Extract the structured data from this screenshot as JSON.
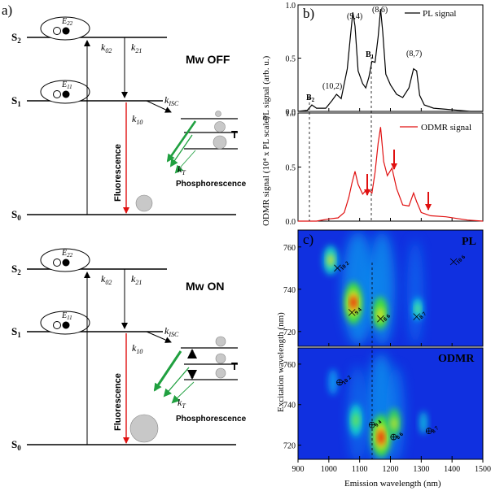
{
  "figure": {
    "panel_labels": {
      "a": "a)",
      "b": "b)",
      "c": "c)"
    },
    "diagram": {
      "top_condition": "Mw OFF",
      "bottom_condition": "Mw ON",
      "levels": {
        "S2": "S",
        "S2_sub": "2",
        "S1": "S",
        "S1_sub": "1",
        "S0": "S",
        "S0_sub": "0",
        "T": "T"
      },
      "exciton_labels": {
        "E22": "E",
        "E22_sub": "22",
        "E11": "E",
        "E11_sub": "11"
      },
      "rates": {
        "k": "k",
        "k02": "02",
        "k21": "21",
        "kISC": "ISC",
        "k10": "10",
        "kT": "T"
      },
      "fluorescence": "Fluorescence",
      "phosphorescence": "Phosphorescence"
    },
    "colors": {
      "fluorescence_arrow": "#e01010",
      "phosphorescence_arrow": "#20a040",
      "odmr_line": "#e01010",
      "map_background": "#1030e0",
      "map_hot": "#e00000"
    }
  },
  "chart_data": [
    {
      "type": "line",
      "panel": "b (top)",
      "legend": "PL signal",
      "ylabel": "PL signal (arb. u.)",
      "xlim": [
        900,
        1500
      ],
      "ylim": [
        0,
        1.0
      ],
      "yticks": [
        "0.0",
        "0.5",
        "1.0"
      ],
      "x": [
        900,
        930,
        945,
        960,
        990,
        1010,
        1025,
        1040,
        1060,
        1070,
        1078,
        1085,
        1095,
        1110,
        1120,
        1130,
        1140,
        1150,
        1160,
        1168,
        1175,
        1185,
        1200,
        1220,
        1240,
        1260,
        1275,
        1285,
        1295,
        1310,
        1340,
        1380,
        1420,
        1460,
        1500
      ],
      "y": [
        0.0,
        0.01,
        0.06,
        0.03,
        0.03,
        0.1,
        0.16,
        0.12,
        0.4,
        0.7,
        0.93,
        0.8,
        0.38,
        0.26,
        0.22,
        0.32,
        0.47,
        0.46,
        0.7,
        0.96,
        0.75,
        0.35,
        0.25,
        0.16,
        0.13,
        0.22,
        0.4,
        0.38,
        0.15,
        0.06,
        0.03,
        0.02,
        0.01,
        0.0,
        0.0
      ],
      "annotations": [
        "B",
        "2",
        "(10,2)",
        "(9,4)",
        "B",
        "1",
        "(8,6)",
        "(8,7)"
      ]
    },
    {
      "type": "line",
      "panel": "b (bottom)",
      "legend": "ODMR signal",
      "ylabel": "ODMR signal (10⁴ x PL scale)",
      "xlim": [
        900,
        1500
      ],
      "ylim": [
        0,
        1.0
      ],
      "yticks": [
        "0.0",
        "0.5",
        "1.0"
      ],
      "x": [
        900,
        960,
        1000,
        1030,
        1050,
        1065,
        1075,
        1085,
        1095,
        1110,
        1125,
        1140,
        1150,
        1160,
        1168,
        1178,
        1190,
        1205,
        1220,
        1240,
        1260,
        1275,
        1285,
        1300,
        1330,
        1380,
        1450,
        1500
      ],
      "y": [
        0.0,
        0.0,
        0.02,
        0.03,
        0.08,
        0.22,
        0.35,
        0.46,
        0.34,
        0.25,
        0.3,
        0.26,
        0.45,
        0.72,
        0.87,
        0.55,
        0.42,
        0.49,
        0.3,
        0.15,
        0.14,
        0.26,
        0.18,
        0.08,
        0.05,
        0.04,
        0.01,
        0.0
      ]
    },
    {
      "type": "heatmap",
      "panel": "c (top)",
      "title": "PL",
      "ylabel": "Excitation wavelength (nm)",
      "xlim": [
        900,
        1500
      ],
      "ylim": [
        713,
        768
      ],
      "yticks": [
        "720",
        "740",
        "760"
      ],
      "markers": [
        {
          "x": 1028,
          "y": 750,
          "label": "10 2"
        },
        {
          "x": 1075,
          "y": 729,
          "label": "9 4"
        },
        {
          "x": 1168,
          "y": 726,
          "label": "8 6"
        },
        {
          "x": 1285,
          "y": 727,
          "label": "8 7"
        },
        {
          "x": 1405,
          "y": 753,
          "label": "10 6"
        }
      ]
    },
    {
      "type": "heatmap",
      "panel": "c (bottom)",
      "title": "ODMR",
      "xlabel": "Emission wavelength (nm)",
      "ylabel": "Excitation wavelength (nm)",
      "xlim": [
        900,
        1500
      ],
      "ylim": [
        713,
        768
      ],
      "yticks": [
        "720",
        "740",
        "760"
      ],
      "xticks": [
        "900",
        "1000",
        "1100",
        "1200",
        "1300",
        "1400",
        "1500"
      ],
      "markers": [
        {
          "x": 1035,
          "y": 751,
          "label": "10 2"
        },
        {
          "x": 1140,
          "y": 730,
          "label": "9 4"
        },
        {
          "x": 1210,
          "y": 724,
          "label": "8 6"
        },
        {
          "x": 1325,
          "y": 727,
          "label": "8 7"
        }
      ]
    }
  ]
}
